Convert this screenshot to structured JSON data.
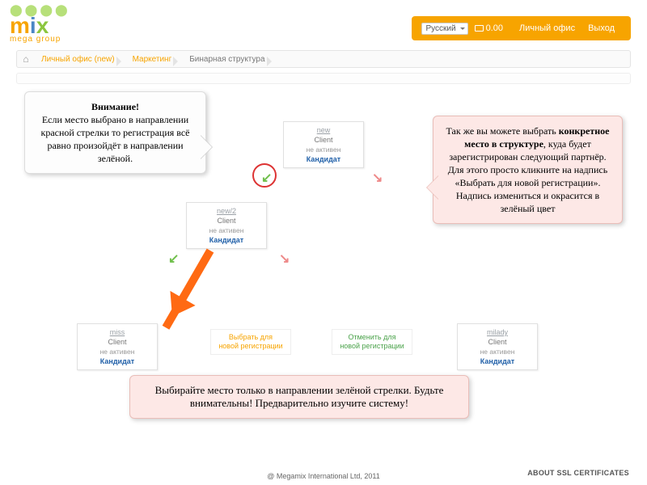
{
  "logo": {
    "line1": "mix",
    "sub": "mega group"
  },
  "header": {
    "lang": "Русский",
    "balance": "0.00",
    "office": "Личный офис",
    "logout": "Выход"
  },
  "crumbs": {
    "c1": "Личный офис (new)",
    "c2": "Маркетинг",
    "c3": "Бинарная структура"
  },
  "nodes": {
    "top": {
      "user": "new",
      "client": "Client",
      "status": "не активен",
      "kand": "Кандидат"
    },
    "mid": {
      "user": "new/2",
      "client": "Client",
      "status": "не активен",
      "kand": "Кандидат"
    },
    "b1": {
      "user": "miss",
      "client": "Client",
      "status": "не активен",
      "kand": "Кандидат"
    },
    "b4": {
      "user": "milady",
      "client": "Client",
      "status": "не активен",
      "kand": "Кандидат"
    }
  },
  "slots": {
    "select": "Выбрать для\nновой регистрации",
    "cancel": "Отменить для\nновой регистрации"
  },
  "callouts": {
    "left_title": "Внимание!",
    "left_body": "Если место выбрано в направлении красной стрелки то регистрация всё равно произойдёт в направлении зелёной.",
    "right": "Так же вы можете выбрать <b>конкретное место в структуре</b>, куда будет зарегистрирован следующий партнёр. Для этого просто кликните на надпись «Выбрать для новой регистрации». Надпись измениться и окрасится в зелёный цвет",
    "bottom": "Выбирайте место только в направлении зелёной стрелки. Будьте внимательны! Предварительно изучите систему!"
  },
  "footer": {
    "copy": "@ Megamix International Ltd, 2011",
    "ssl": "ABOUT SSL CERTIFICATES"
  },
  "colors": {
    "brand": "#f7a400"
  }
}
